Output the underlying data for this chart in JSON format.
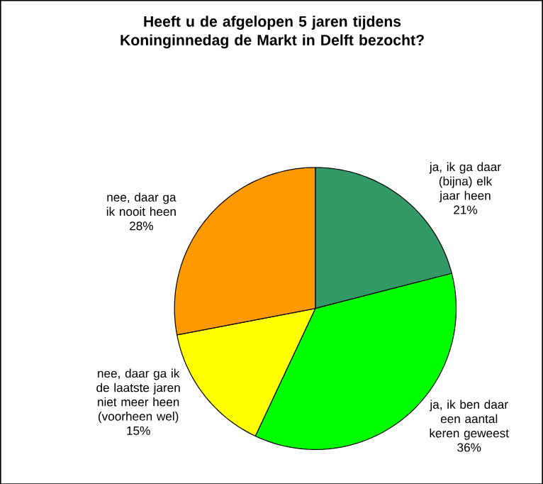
{
  "chart_data": {
    "type": "pie",
    "title": "Heeft u de afgelopen 5 jaren tijdens Koninginnedag de Markt in Delft bezocht?",
    "categories": [
      "ja, ik ga daar (bijna) elk jaar heen",
      "ja, ik ben daar een aantal keren geweest",
      "nee, daar ga ik de laatste jaren niet meer heen (voorheen wel)",
      "nee, daar ga ik nooit heen"
    ],
    "values": [
      21,
      36,
      15,
      28
    ],
    "value_labels": [
      "21%",
      "36%",
      "15%",
      "28%"
    ],
    "colors": [
      "#339966",
      "#00ff00",
      "#ffff00",
      "#ff9900"
    ]
  }
}
